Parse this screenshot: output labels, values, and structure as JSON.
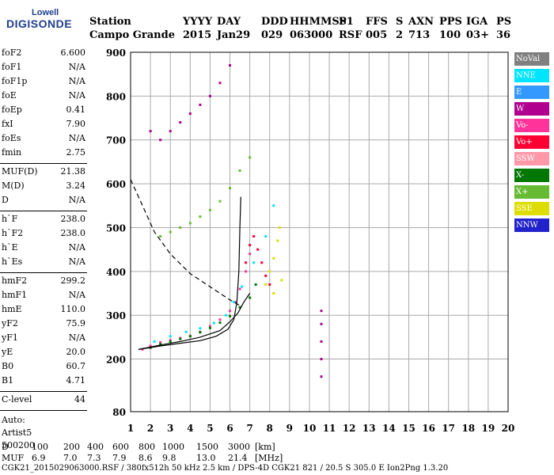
{
  "logo": {
    "line1": "Lowell",
    "line2": "DIGISONDE"
  },
  "header": {
    "row1": [
      "Station",
      "YYYY",
      "DAY",
      "DDD",
      "HHMMSS",
      "P1",
      "FFS",
      "S",
      "AXN",
      "PPS",
      "IGA",
      "PS"
    ],
    "row2": [
      "Campo Grande",
      "2015",
      "Jan29",
      "029",
      "063000",
      "RSF",
      "005",
      "2",
      "713",
      "100",
      "03+",
      "36"
    ]
  },
  "params_group1": [
    {
      "name": "foF2",
      "value": "6.600"
    },
    {
      "name": "foF1",
      "value": "N/A"
    },
    {
      "name": "foF1p",
      "value": "N/A"
    },
    {
      "name": "foE",
      "value": "N/A"
    },
    {
      "name": "foEp",
      "value": "0.41"
    },
    {
      "name": "fxI",
      "value": "7.90"
    },
    {
      "name": "foEs",
      "value": "N/A"
    },
    {
      "name": "fmin",
      "value": "2.75"
    }
  ],
  "params_group2": [
    {
      "name": "MUF(D)",
      "value": "21.38"
    },
    {
      "name": "M(D)",
      "value": "3.24"
    },
    {
      "name": "D",
      "value": "N/A"
    }
  ],
  "params_group3": [
    {
      "name": "h`F",
      "value": "238.0"
    },
    {
      "name": "h`F2",
      "value": "238.0"
    },
    {
      "name": "h`E",
      "value": "N/A"
    },
    {
      "name": "h`Es",
      "value": "N/A"
    }
  ],
  "params_group4": [
    {
      "name": "hmF2",
      "value": "299.2"
    },
    {
      "name": "hmF1",
      "value": "N/A"
    },
    {
      "name": "hmE",
      "value": "110.0"
    },
    {
      "name": "yF2",
      "value": "75.9"
    },
    {
      "name": "yF1",
      "value": "N/A"
    },
    {
      "name": "yE",
      "value": "20.0"
    },
    {
      "name": "B0",
      "value": "60.7"
    },
    {
      "name": "B1",
      "value": "4.71"
    }
  ],
  "clevel": {
    "name": "C-level",
    "value": "44"
  },
  "auto": [
    "Auto:",
    "Artist5",
    "500200"
  ],
  "footer": {
    "d_label": "D",
    "d_values": [
      "100",
      "200",
      "400",
      "600",
      "800",
      "1000",
      "1500",
      "3000",
      "[km]"
    ],
    "muf_label": "MUF",
    "muf_values": [
      "6.9",
      "7.0",
      "7.3",
      "7.9",
      "8.6",
      "9.8",
      "13.0",
      "21.4",
      "[MHz]"
    ],
    "file_line": "CGK21_2015029063000.RSF / 380fx512h 50 kHz 2.5 km / DPS-4D CGK21 821 / 20.5 S 305.0 E Ion2Png 1.3.20"
  },
  "legend": [
    {
      "label": "NoVal",
      "color": "#808080"
    },
    {
      "label": "NNE",
      "color": "#00e5ff"
    },
    {
      "label": "E",
      "color": "#3399ff"
    },
    {
      "label": "W",
      "color": "#b0008f"
    },
    {
      "label": "Vo-",
      "color": "#ff3399"
    },
    {
      "label": "Vo+",
      "color": "#ff0033"
    },
    {
      "label": "SSW",
      "color": "#ff99aa"
    },
    {
      "label": "X-",
      "color": "#007700"
    },
    {
      "label": "X+",
      "color": "#66bb33"
    },
    {
      "label": "SSE",
      "color": "#dddd00"
    },
    {
      "label": "NNW",
      "color": "#2222cc"
    }
  ],
  "chart_data": {
    "type": "scatter",
    "xlim": [
      1,
      20
    ],
    "ylim": [
      80,
      900
    ],
    "x_ticks": [
      1,
      2,
      3,
      4,
      5,
      6,
      7,
      8,
      9,
      10,
      11,
      12,
      13,
      14,
      15,
      16,
      17,
      18,
      19,
      20
    ],
    "y_ticks": [
      80,
      200,
      300,
      400,
      500,
      600,
      700,
      800,
      900
    ],
    "grid": true,
    "legend_position": "right",
    "series": [
      {
        "name": "Vo-",
        "color": "#ff3399",
        "points": [
          [
            1.6,
            222
          ],
          [
            2.0,
            230
          ],
          [
            2.5,
            238
          ],
          [
            3.0,
            243
          ],
          [
            3.5,
            248
          ],
          [
            4.0,
            253
          ],
          [
            4.5,
            262
          ],
          [
            5.0,
            275
          ],
          [
            5.5,
            290
          ],
          [
            6.0,
            310
          ],
          [
            6.3,
            330
          ],
          [
            6.5,
            360
          ],
          [
            6.8,
            400
          ],
          [
            7.0,
            440
          ]
        ]
      },
      {
        "name": "X-",
        "color": "#007700",
        "points": [
          [
            2.0,
            226
          ],
          [
            2.5,
            234
          ],
          [
            3.0,
            240
          ],
          [
            3.5,
            246
          ],
          [
            4.0,
            252
          ],
          [
            4.5,
            261
          ],
          [
            5.0,
            271
          ],
          [
            5.5,
            283
          ],
          [
            6.0,
            298
          ],
          [
            6.5,
            318
          ],
          [
            7.0,
            340
          ],
          [
            7.3,
            370
          ]
        ]
      },
      {
        "name": "NNE",
        "color": "#00e5ff",
        "points": [
          [
            2.2,
            240
          ],
          [
            3.0,
            252
          ],
          [
            3.8,
            262
          ],
          [
            4.5,
            270
          ],
          [
            5.2,
            282
          ],
          [
            5.8,
            300
          ],
          [
            6.2,
            330
          ],
          [
            6.6,
            365
          ],
          [
            7.2,
            420
          ],
          [
            7.8,
            480
          ],
          [
            8.2,
            550
          ]
        ]
      },
      {
        "name": "Vo+",
        "color": "#ff0033",
        "points": [
          [
            6.8,
            420
          ],
          [
            7.0,
            460
          ],
          [
            7.2,
            480
          ],
          [
            7.4,
            450
          ],
          [
            7.6,
            420
          ],
          [
            7.8,
            390
          ],
          [
            8.0,
            370
          ]
        ]
      },
      {
        "name": "SSE",
        "color": "#dddd00",
        "points": [
          [
            7.8,
            370
          ],
          [
            8.0,
            400
          ],
          [
            8.2,
            430
          ],
          [
            8.4,
            470
          ],
          [
            8.5,
            500
          ],
          [
            8.2,
            350
          ],
          [
            8.6,
            380
          ]
        ]
      },
      {
        "name": "W",
        "color": "#b0008f",
        "points": [
          [
            2.0,
            720
          ],
          [
            2.5,
            700
          ],
          [
            3.0,
            720
          ],
          [
            3.5,
            740
          ],
          [
            4.0,
            760
          ],
          [
            4.5,
            780
          ],
          [
            5.0,
            800
          ],
          [
            5.5,
            830
          ],
          [
            6.0,
            870
          ],
          [
            10.6,
            160
          ],
          [
            10.6,
            200
          ],
          [
            10.6,
            240
          ],
          [
            10.6,
            280
          ],
          [
            10.6,
            310
          ]
        ]
      },
      {
        "name": "X+",
        "color": "#66bb33",
        "points": [
          [
            2.5,
            480
          ],
          [
            3.0,
            490
          ],
          [
            3.5,
            500
          ],
          [
            4.0,
            510
          ],
          [
            4.5,
            525
          ],
          [
            5.0,
            540
          ],
          [
            5.5,
            560
          ],
          [
            6.0,
            590
          ],
          [
            6.5,
            630
          ],
          [
            7.0,
            660
          ]
        ]
      }
    ],
    "curves": [
      {
        "name": "profile",
        "style": "solid",
        "points": [
          [
            1.4,
            222
          ],
          [
            2.5,
            230
          ],
          [
            3.5,
            236
          ],
          [
            4.5,
            242
          ],
          [
            5.3,
            252
          ],
          [
            5.9,
            268
          ],
          [
            6.2,
            290
          ],
          [
            6.35,
            330
          ],
          [
            6.45,
            400
          ],
          [
            6.5,
            500
          ],
          [
            6.55,
            570
          ]
        ]
      },
      {
        "name": "trace-fit",
        "style": "solid",
        "points": [
          [
            1.4,
            222
          ],
          [
            2.5,
            232
          ],
          [
            3.5,
            240
          ],
          [
            4.5,
            250
          ],
          [
            5.5,
            265
          ],
          [
            6.0,
            285
          ],
          [
            6.4,
            305
          ],
          [
            6.7,
            330
          ],
          [
            7.0,
            350
          ]
        ]
      },
      {
        "name": "hmf-dashed",
        "style": "dashed",
        "points": [
          [
            1.0,
            610
          ],
          [
            1.6,
            550
          ],
          [
            2.2,
            490
          ],
          [
            3.0,
            440
          ],
          [
            4.0,
            395
          ],
          [
            5.0,
            365
          ],
          [
            6.0,
            335
          ],
          [
            6.5,
            322
          ]
        ]
      }
    ]
  }
}
